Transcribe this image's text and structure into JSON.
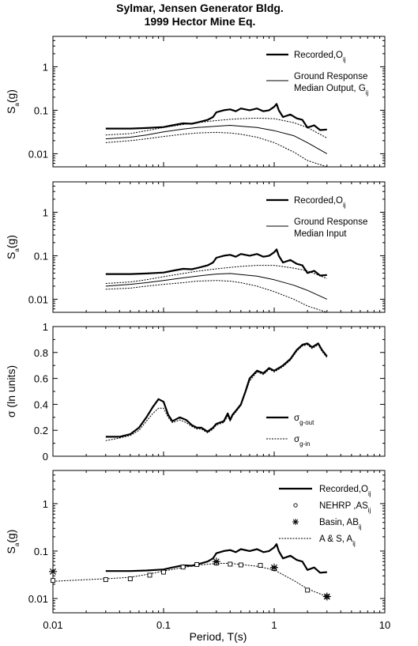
{
  "title": [
    "Sylmar, Jensen Generator Bldg.",
    "1999 Hector Mine Eq."
  ],
  "xlabel": "Period, T(s)",
  "chart_data": [
    {
      "type": "line",
      "ylabel": {
        "main": "S",
        "sub": "a",
        "tail": "(g)"
      },
      "xlim": [
        0.01,
        10
      ],
      "ylim": [
        0.005,
        5
      ],
      "xscale": "log",
      "yscale": "log",
      "yticks": [
        {
          "v": 0.01,
          "label": "0.01"
        },
        {
          "v": 0.1,
          "label": "0.1"
        },
        {
          "v": 1,
          "label": "1"
        }
      ],
      "legend_position": "top-right",
      "legend": [
        {
          "lines": [
            {
              "main": "Recorded,O",
              "sub": "ij"
            }
          ],
          "style": "thick"
        },
        {
          "lines": [
            {
              "main": "Ground Response"
            },
            {
              "main": "Median Output, G",
              "sub": "ij"
            }
          ],
          "style": "thin"
        }
      ],
      "series": [
        {
          "style": "thick",
          "x": [
            0.03,
            0.05,
            0.07,
            0.1,
            0.12,
            0.15,
            0.18,
            0.2,
            0.25,
            0.28,
            0.3,
            0.35,
            0.4,
            0.45,
            0.5,
            0.6,
            0.7,
            0.8,
            0.9,
            1.0,
            1.05,
            1.1,
            1.2,
            1.4,
            1.6,
            1.8,
            2.0,
            2.3,
            2.6,
            3.0
          ],
          "y": [
            0.038,
            0.038,
            0.039,
            0.041,
            0.045,
            0.05,
            0.049,
            0.052,
            0.06,
            0.07,
            0.09,
            0.1,
            0.105,
            0.095,
            0.11,
            0.1,
            0.11,
            0.095,
            0.1,
            0.12,
            0.14,
            0.1,
            0.07,
            0.08,
            0.065,
            0.06,
            0.04,
            0.045,
            0.035,
            0.036
          ]
        },
        {
          "style": "thin",
          "x": [
            0.03,
            0.05,
            0.07,
            0.1,
            0.15,
            0.2,
            0.3,
            0.4,
            0.5,
            0.7,
            1.0,
            1.5,
            2.0,
            3.0
          ],
          "y": [
            0.022,
            0.024,
            0.027,
            0.032,
            0.037,
            0.04,
            0.043,
            0.045,
            0.043,
            0.04,
            0.034,
            0.026,
            0.018,
            0.01
          ]
        },
        {
          "style": "dotted",
          "x": [
            0.03,
            0.05,
            0.07,
            0.1,
            0.15,
            0.2,
            0.3,
            0.4,
            0.5,
            0.7,
            1.0,
            1.5,
            2.0,
            3.0
          ],
          "y": [
            0.027,
            0.029,
            0.034,
            0.04,
            0.047,
            0.052,
            0.058,
            0.062,
            0.064,
            0.066,
            0.064,
            0.052,
            0.04,
            0.023
          ]
        },
        {
          "style": "dotted",
          "x": [
            0.03,
            0.05,
            0.07,
            0.1,
            0.15,
            0.2,
            0.3,
            0.4,
            0.5,
            0.7,
            1.0,
            1.5,
            2.0,
            3.0
          ],
          "y": [
            0.018,
            0.02,
            0.022,
            0.025,
            0.028,
            0.03,
            0.031,
            0.03,
            0.028,
            0.024,
            0.018,
            0.011,
            0.007,
            0.005
          ]
        }
      ]
    },
    {
      "type": "line",
      "ylabel": {
        "main": "S",
        "sub": "a",
        "tail": "(g)"
      },
      "xlim": [
        0.01,
        10
      ],
      "ylim": [
        0.005,
        5
      ],
      "xscale": "log",
      "yscale": "log",
      "yticks": [
        {
          "v": 0.01,
          "label": "0.01"
        },
        {
          "v": 0.1,
          "label": "0.1"
        },
        {
          "v": 1,
          "label": "1"
        }
      ],
      "legend_position": "top-right",
      "legend": [
        {
          "lines": [
            {
              "main": "Recorded,O",
              "sub": "ij"
            }
          ],
          "style": "thick"
        },
        {
          "lines": [
            {
              "main": "Ground Response"
            },
            {
              "main": "Median Input"
            }
          ],
          "style": "thin"
        }
      ],
      "series": [
        {
          "style": "thick",
          "x": [
            0.03,
            0.05,
            0.07,
            0.1,
            0.12,
            0.15,
            0.18,
            0.2,
            0.25,
            0.28,
            0.3,
            0.35,
            0.4,
            0.45,
            0.5,
            0.6,
            0.7,
            0.8,
            0.9,
            1.0,
            1.05,
            1.1,
            1.2,
            1.4,
            1.6,
            1.8,
            2.0,
            2.3,
            2.6,
            3.0
          ],
          "y": [
            0.038,
            0.038,
            0.039,
            0.041,
            0.045,
            0.05,
            0.049,
            0.052,
            0.06,
            0.07,
            0.09,
            0.1,
            0.105,
            0.095,
            0.11,
            0.1,
            0.11,
            0.095,
            0.1,
            0.12,
            0.14,
            0.1,
            0.07,
            0.08,
            0.065,
            0.06,
            0.04,
            0.045,
            0.035,
            0.036
          ]
        },
        {
          "style": "thin",
          "x": [
            0.03,
            0.05,
            0.07,
            0.1,
            0.15,
            0.2,
            0.3,
            0.4,
            0.5,
            0.7,
            1.0,
            1.5,
            2.0,
            3.0
          ],
          "y": [
            0.02,
            0.022,
            0.024,
            0.027,
            0.031,
            0.034,
            0.038,
            0.039,
            0.037,
            0.034,
            0.028,
            0.021,
            0.016,
            0.01
          ]
        },
        {
          "style": "dotted",
          "x": [
            0.03,
            0.05,
            0.07,
            0.1,
            0.15,
            0.2,
            0.3,
            0.4,
            0.5,
            0.7,
            1.0,
            1.5,
            2.0,
            3.0
          ],
          "y": [
            0.023,
            0.025,
            0.028,
            0.033,
            0.039,
            0.044,
            0.05,
            0.054,
            0.057,
            0.06,
            0.06,
            0.052,
            0.045,
            0.03
          ]
        },
        {
          "style": "dotted",
          "x": [
            0.03,
            0.05,
            0.07,
            0.1,
            0.15,
            0.2,
            0.3,
            0.4,
            0.5,
            0.7,
            1.0,
            1.5,
            2.0,
            3.0
          ],
          "y": [
            0.017,
            0.018,
            0.02,
            0.022,
            0.024,
            0.026,
            0.027,
            0.026,
            0.024,
            0.02,
            0.015,
            0.01,
            0.007,
            0.005
          ]
        }
      ]
    },
    {
      "type": "line",
      "ylabel": {
        "main": "σ (ln units)"
      },
      "xlim": [
        0.01,
        10
      ],
      "ylim": [
        0,
        1
      ],
      "xscale": "log",
      "yscale": "linear",
      "yticks": [
        {
          "v": 0,
          "label": "0"
        },
        {
          "v": 0.2,
          "label": "0.2"
        },
        {
          "v": 0.4,
          "label": "0.4"
        },
        {
          "v": 0.6,
          "label": "0.6"
        },
        {
          "v": 0.8,
          "label": "0.8"
        },
        {
          "v": 1,
          "label": "1"
        }
      ],
      "legend_position": "bottom-right",
      "legend": [
        {
          "lines": [
            {
              "main": "σ",
              "sub": "g-out"
            }
          ],
          "style": "thick"
        },
        {
          "lines": [
            {
              "main": "σ",
              "sub": "g-in"
            }
          ],
          "style": "dotted"
        }
      ],
      "series": [
        {
          "style": "thick",
          "x": [
            0.03,
            0.04,
            0.05,
            0.06,
            0.07,
            0.08,
            0.09,
            0.1,
            0.11,
            0.12,
            0.14,
            0.16,
            0.18,
            0.2,
            0.22,
            0.25,
            0.28,
            0.3,
            0.35,
            0.38,
            0.4,
            0.42,
            0.45,
            0.5,
            0.55,
            0.6,
            0.7,
            0.8,
            0.9,
            1.0,
            1.1,
            1.2,
            1.4,
            1.6,
            1.8,
            2.0,
            2.2,
            2.5,
            2.7,
            3.0
          ],
          "y": [
            0.15,
            0.15,
            0.17,
            0.22,
            0.3,
            0.38,
            0.44,
            0.42,
            0.32,
            0.27,
            0.3,
            0.28,
            0.24,
            0.22,
            0.22,
            0.19,
            0.22,
            0.25,
            0.27,
            0.33,
            0.28,
            0.32,
            0.35,
            0.4,
            0.5,
            0.6,
            0.66,
            0.64,
            0.68,
            0.66,
            0.68,
            0.7,
            0.75,
            0.82,
            0.86,
            0.87,
            0.84,
            0.87,
            0.82,
            0.77
          ]
        },
        {
          "style": "dotted",
          "x": [
            0.03,
            0.04,
            0.05,
            0.06,
            0.07,
            0.08,
            0.09,
            0.1,
            0.11,
            0.12,
            0.14,
            0.16,
            0.18,
            0.2,
            0.22,
            0.25,
            0.28,
            0.3,
            0.35,
            0.38,
            0.4,
            0.42,
            0.45,
            0.5,
            0.55,
            0.6,
            0.7,
            0.8,
            0.9,
            1.0,
            1.1,
            1.2,
            1.4,
            1.6,
            1.8,
            2.0,
            2.2,
            2.5,
            2.7,
            3.0
          ],
          "y": [
            0.12,
            0.14,
            0.16,
            0.2,
            0.27,
            0.33,
            0.37,
            0.37,
            0.3,
            0.26,
            0.28,
            0.26,
            0.23,
            0.21,
            0.21,
            0.18,
            0.21,
            0.24,
            0.26,
            0.31,
            0.27,
            0.31,
            0.34,
            0.39,
            0.49,
            0.58,
            0.65,
            0.63,
            0.67,
            0.65,
            0.67,
            0.69,
            0.74,
            0.81,
            0.85,
            0.86,
            0.83,
            0.86,
            0.81,
            0.76
          ]
        }
      ]
    },
    {
      "type": "line",
      "ylabel": {
        "main": "S",
        "sub": "a",
        "tail": "(g)"
      },
      "xlim": [
        0.01,
        10
      ],
      "ylim": [
        0.005,
        5
      ],
      "xscale": "log",
      "yscale": "log",
      "yticks": [
        {
          "v": 0.01,
          "label": "0.01"
        },
        {
          "v": 0.1,
          "label": "0.1"
        },
        {
          "v": 1,
          "label": "1"
        }
      ],
      "xticks": [
        {
          "v": 0.01,
          "label": "0.01"
        },
        {
          "v": 0.1,
          "label": "0.1"
        },
        {
          "v": 1,
          "label": "1"
        },
        {
          "v": 10,
          "label": "10"
        }
      ],
      "legend_position": "top-right",
      "legend": [
        {
          "lines": [
            {
              "main": "Recorded,O",
              "sub": "ij"
            }
          ],
          "style": "thick"
        },
        {
          "lines": [
            {
              "main": "NEHRP ,AS",
              "sub": "ij"
            }
          ],
          "style": "circle"
        },
        {
          "lines": [
            {
              "main": "Basin, AB",
              "sub": "ij"
            }
          ],
          "style": "star"
        },
        {
          "lines": [
            {
              "main": "A & S, A",
              "sub": "ij"
            }
          ],
          "style": "dotted"
        }
      ],
      "series": [
        {
          "style": "thick",
          "x": [
            0.03,
            0.05,
            0.07,
            0.1,
            0.12,
            0.15,
            0.18,
            0.2,
            0.25,
            0.28,
            0.3,
            0.35,
            0.4,
            0.45,
            0.5,
            0.6,
            0.7,
            0.8,
            0.9,
            1.0,
            1.05,
            1.1,
            1.2,
            1.4,
            1.6,
            1.8,
            2.0,
            2.3,
            2.6,
            3.0
          ],
          "y": [
            0.038,
            0.038,
            0.039,
            0.041,
            0.045,
            0.05,
            0.049,
            0.052,
            0.06,
            0.07,
            0.09,
            0.1,
            0.105,
            0.095,
            0.11,
            0.1,
            0.11,
            0.095,
            0.1,
            0.12,
            0.14,
            0.1,
            0.07,
            0.08,
            0.065,
            0.06,
            0.04,
            0.045,
            0.035,
            0.036
          ]
        },
        {
          "style": "dotted",
          "x": [
            0.01,
            0.02,
            0.03,
            0.05,
            0.07,
            0.1,
            0.15,
            0.2,
            0.3,
            0.4,
            0.5,
            0.7,
            1.0,
            1.5,
            2.0,
            3.0
          ],
          "y": [
            0.023,
            0.025,
            0.026,
            0.028,
            0.032,
            0.038,
            0.045,
            0.05,
            0.055,
            0.055,
            0.052,
            0.048,
            0.04,
            0.024,
            0.016,
            0.011
          ]
        },
        {
          "style": "square",
          "x": [
            0.01,
            0.03,
            0.05,
            0.075,
            0.1,
            0.15,
            0.2,
            0.3,
            0.4,
            0.5,
            0.75,
            1.0,
            2.0,
            3.0
          ],
          "y": [
            0.024,
            0.025,
            0.026,
            0.031,
            0.036,
            0.046,
            0.052,
            0.056,
            0.053,
            0.051,
            0.05,
            0.043,
            0.015,
            0.011
          ]
        },
        {
          "style": "star",
          "x": [
            0.01,
            0.3,
            1.0,
            3.0
          ],
          "y": [
            0.037,
            0.06,
            0.045,
            0.011
          ]
        }
      ]
    }
  ]
}
